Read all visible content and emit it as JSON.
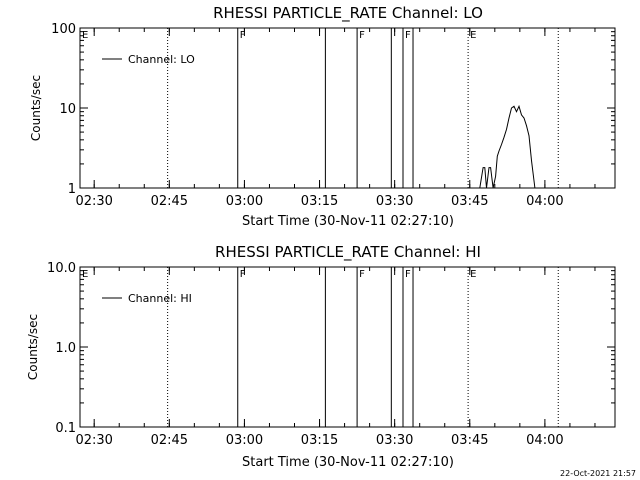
{
  "footer_stamp": "22-Oct-2021 21:57",
  "chart_data": [
    {
      "type": "line",
      "title": "RHESSI PARTICLE_RATE Channel: LO",
      "xlabel": "Start Time (30-Nov-11 02:27:10)",
      "ylabel": "Counts/sec",
      "yscale": "log",
      "ylim": [
        1,
        100
      ],
      "xlim": [
        "02:27:10",
        "04:14:00"
      ],
      "x_ticks": [
        "02:30",
        "02:45",
        "03:00",
        "03:15",
        "03:30",
        "03:45",
        "04:00"
      ],
      "y_ticks": [
        "1",
        "10",
        "100"
      ],
      "legend": {
        "position": "top-left",
        "entries": [
          "Channel: LO"
        ]
      },
      "solid_lines": [
        "02:58:40",
        "03:16:10",
        "03:22:30",
        "03:29:20",
        "03:31:40",
        "03:33:40"
      ],
      "dotted_lines": [
        "02:44:40",
        "03:44:40",
        "04:02:40"
      ],
      "flags": [
        {
          "label": "E",
          "at": "02:27:10"
        },
        {
          "label": "F",
          "at": "02:58:40"
        },
        {
          "label": "F",
          "at": "03:22:30"
        },
        {
          "label": "F",
          "at": "03:31:40"
        },
        {
          "label": "E",
          "at": "03:44:40"
        }
      ],
      "series": [
        {
          "name": "Channel: LO",
          "x": [
            "03:46:00",
            "03:47:00",
            "03:47:40",
            "03:48:00",
            "03:48:20",
            "03:48:50",
            "03:49:10",
            "03:49:40",
            "03:50:10",
            "03:50:30",
            "03:50:50",
            "03:51:20",
            "03:51:50",
            "03:52:20",
            "03:52:50",
            "03:53:20",
            "03:53:50",
            "03:54:20",
            "03:54:50",
            "03:55:20",
            "03:55:50",
            "03:56:20",
            "03:56:50",
            "03:57:20",
            "03:58:00"
          ],
          "y": [
            1,
            1,
            1.8,
            1.8,
            1,
            1.8,
            1.8,
            1,
            1.4,
            2.5,
            2.9,
            3.5,
            4.3,
            5.4,
            7.5,
            10,
            10.5,
            9,
            10.5,
            8.2,
            7.5,
            6,
            4.5,
            2.2,
            1
          ]
        }
      ]
    },
    {
      "type": "line",
      "title": "RHESSI PARTICLE_RATE Channel: HI",
      "xlabel": "Start Time (30-Nov-11 02:27:10)",
      "ylabel": "Counts/sec",
      "yscale": "log",
      "ylim": [
        0.1,
        10
      ],
      "xlim": [
        "02:27:10",
        "04:14:00"
      ],
      "x_ticks": [
        "02:30",
        "02:45",
        "03:00",
        "03:15",
        "03:30",
        "03:45",
        "04:00"
      ],
      "y_ticks": [
        "0.1",
        "1.0",
        "10.0"
      ],
      "legend": {
        "position": "top-left",
        "entries": [
          "Channel: HI"
        ]
      },
      "solid_lines": [
        "02:58:40",
        "03:16:10",
        "03:22:30",
        "03:29:20",
        "03:31:40",
        "03:33:40"
      ],
      "dotted_lines": [
        "02:44:40",
        "03:44:40",
        "04:02:40"
      ],
      "flags": [
        {
          "label": "E",
          "at": "02:27:10"
        },
        {
          "label": "F",
          "at": "02:58:40"
        },
        {
          "label": "F",
          "at": "03:22:30"
        },
        {
          "label": "F",
          "at": "03:31:40"
        },
        {
          "label": "E",
          "at": "03:44:40"
        }
      ],
      "series": [
        {
          "name": "Channel: HI",
          "x": [],
          "y": []
        }
      ]
    }
  ]
}
